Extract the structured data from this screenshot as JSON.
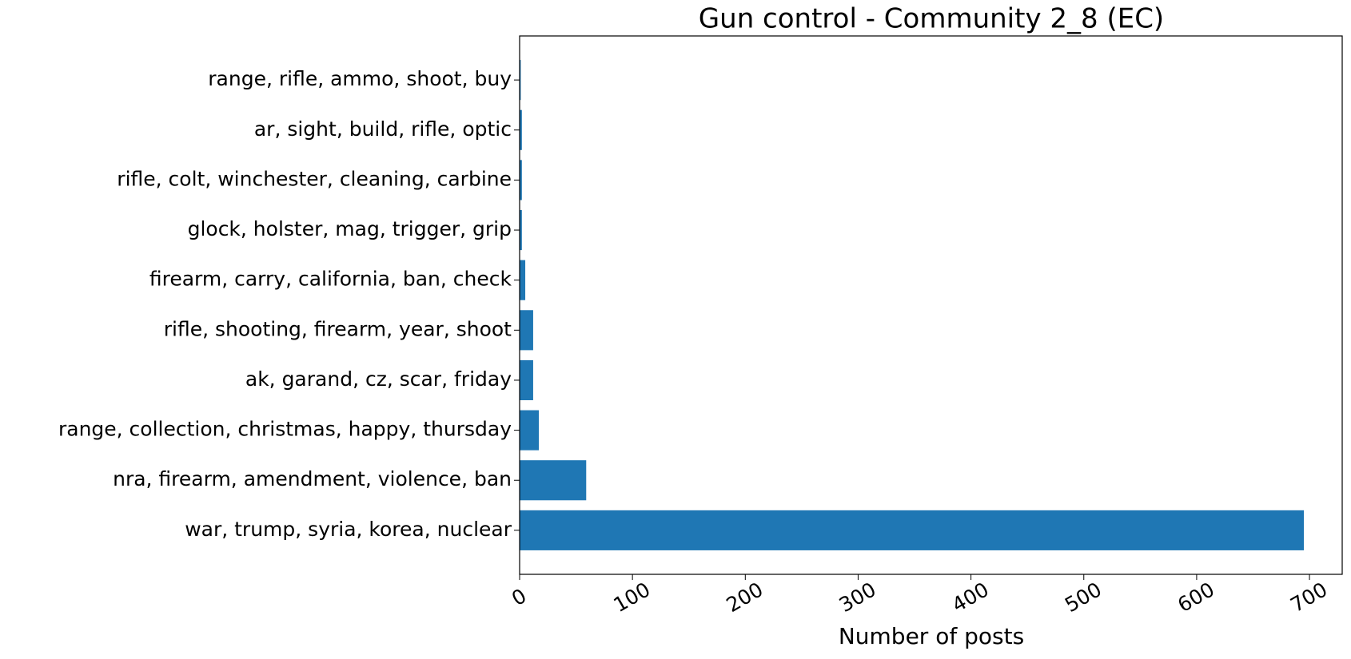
{
  "chart_data": {
    "type": "barh",
    "title": "Gun control - Community 2_8 (EC)",
    "x_label": "Number of posts",
    "categories": [
      "war, trump, syria, korea, nuclear",
      "nra, firearm, amendment, violence, ban",
      "range, collection, christmas, happy, thursday",
      "ak, garand, cz, scar, friday",
      "rifle, shooting, firearm, year, shoot",
      "firearm, carry, california, ban, check",
      "glock, holster, mag, trigger, grip",
      "rifle, colt, winchester, cleaning, carbine",
      "ar, sight, build, rifle, optic",
      "range, rifle, ammo, shoot, buy"
    ],
    "values": [
      695,
      59,
      17,
      12,
      12,
      5,
      2,
      2,
      2,
      1
    ],
    "color": "#1f77b4",
    "xlim": [
      0,
      729
    ],
    "xticks": [
      0,
      100,
      200,
      300,
      400,
      500,
      600,
      700
    ]
  }
}
